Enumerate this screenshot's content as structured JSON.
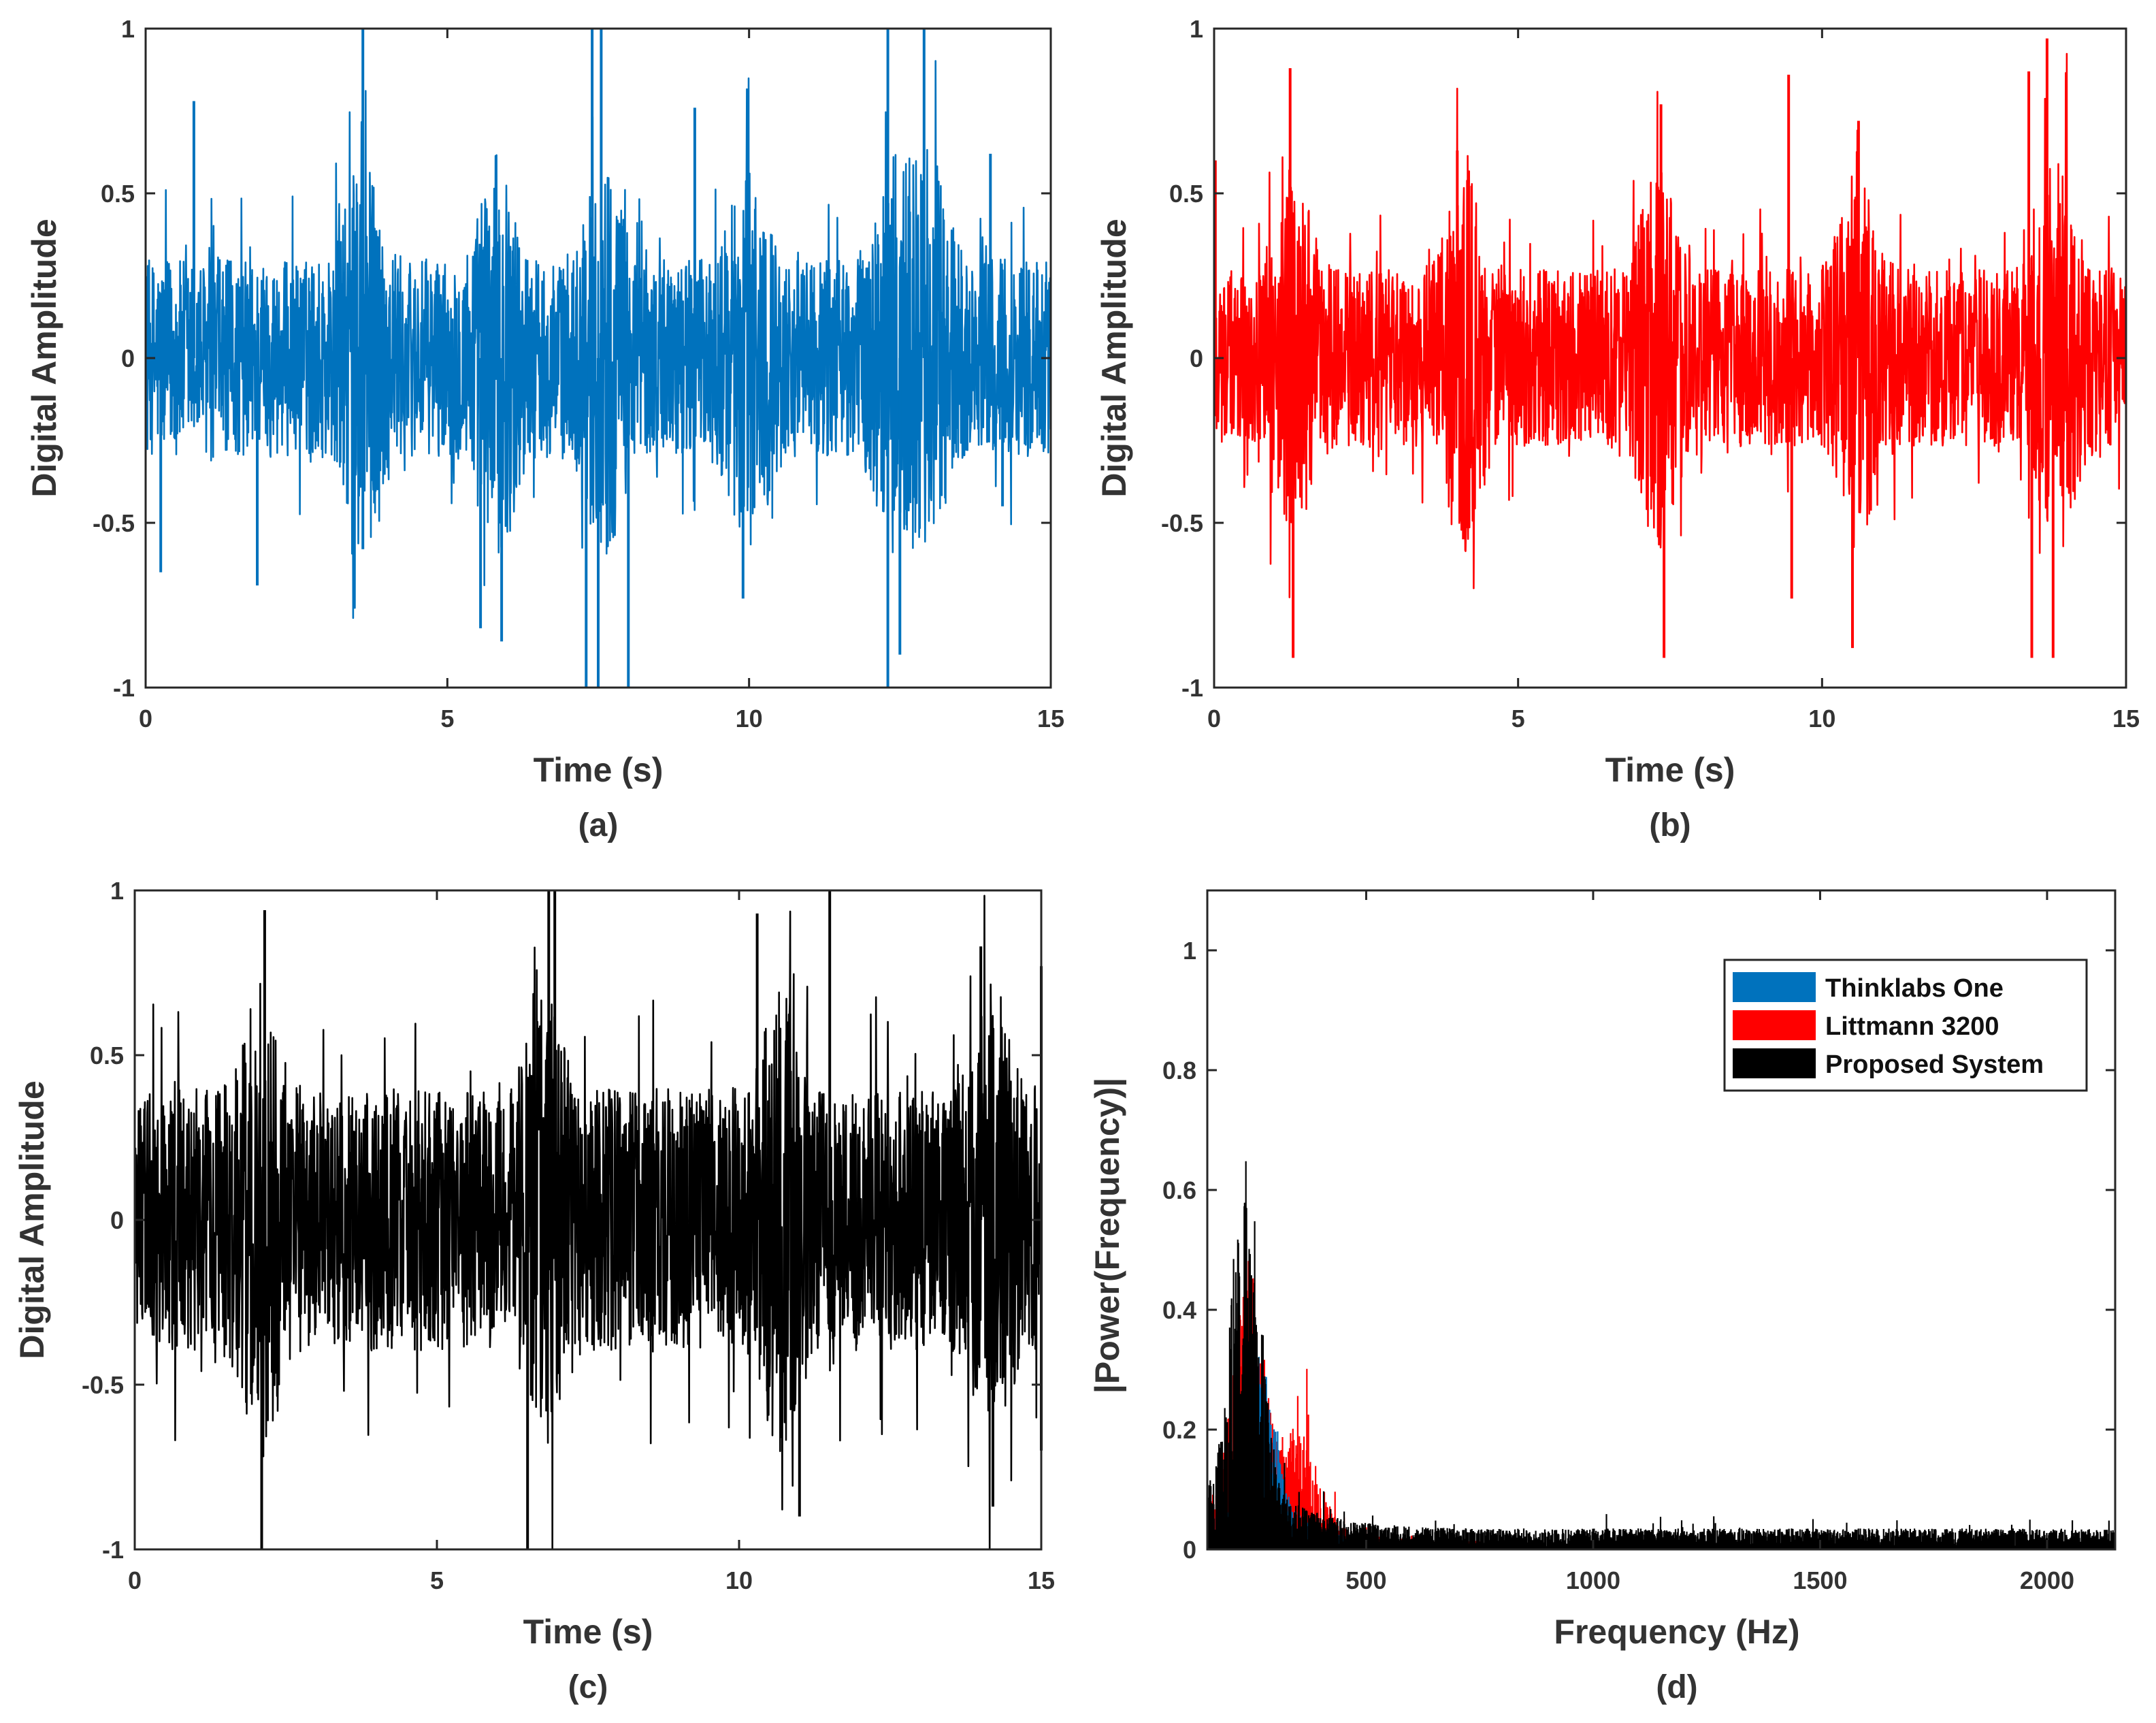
{
  "chart_data": [
    {
      "type": "line",
      "panel": "(a)",
      "caption": "(a)",
      "xlabel": "Time (s)",
      "ylabel": "Digital Amplitude",
      "xlim": [
        0,
        15
      ],
      "ylim": [
        -1,
        1
      ],
      "xticks": [
        "0",
        "5",
        "10",
        "15"
      ],
      "yticks": [
        "-1",
        "-0.5",
        "0",
        "0.5",
        "1"
      ],
      "grid": false,
      "series": [
        {
          "name": "Thinklabs One",
          "color": "#0072BD",
          "base_amplitude": 0.3,
          "envelope_centers_s": [
            3.6,
            5.8,
            7.6,
            10.0,
            12.4,
            13.0
          ],
          "peaks": [
            {
              "t": 0.8,
              "v": 0.78
            },
            {
              "t": 0.25,
              "v": -0.65
            },
            {
              "t": 1.85,
              "v": -0.69
            },
            {
              "t": 3.6,
              "v": 1.0
            },
            {
              "t": 3.6,
              "v": -0.58
            },
            {
              "t": 5.55,
              "v": -0.82
            },
            {
              "t": 5.9,
              "v": -0.86
            },
            {
              "t": 7.4,
              "v": 1.0
            },
            {
              "t": 7.55,
              "v": 1.0
            },
            {
              "t": 7.3,
              "v": -1.0
            },
            {
              "t": 7.5,
              "v": -1.0
            },
            {
              "t": 8.0,
              "v": -1.0
            },
            {
              "t": 9.1,
              "v": 0.76
            },
            {
              "t": 9.9,
              "v": -0.73
            },
            {
              "t": 12.3,
              "v": 1.0
            },
            {
              "t": 12.3,
              "v": -1.0
            },
            {
              "t": 12.9,
              "v": 1.0
            },
            {
              "t": 12.5,
              "v": -0.9
            },
            {
              "t": 14.0,
              "v": 0.62
            },
            {
              "t": 14.2,
              "v": -0.45
            }
          ]
        }
      ]
    },
    {
      "type": "line",
      "panel": "(b)",
      "caption": "(b)",
      "xlabel": "Time (s)",
      "ylabel": "Digital Amplitude",
      "xlim": [
        0,
        15
      ],
      "ylim": [
        -1,
        1
      ],
      "xticks": [
        "0",
        "5",
        "10",
        "15"
      ],
      "yticks": [
        "-1",
        "-0.5",
        "0",
        "0.5",
        "1"
      ],
      "grid": false,
      "series": [
        {
          "name": "Littmann 3200",
          "color": "#FF0000",
          "base_amplitude": 0.27,
          "envelope_centers_s": [
            1.3,
            4.1,
            7.3,
            10.6,
            13.9
          ],
          "peaks": [
            {
              "t": 1.25,
              "v": 0.88
            },
            {
              "t": 1.3,
              "v": -0.91
            },
            {
              "t": 4.0,
              "v": 0.63
            },
            {
              "t": 4.1,
              "v": -0.55
            },
            {
              "t": 7.35,
              "v": 0.77
            },
            {
              "t": 7.4,
              "v": -0.91
            },
            {
              "t": 9.45,
              "v": 0.86
            },
            {
              "t": 9.5,
              "v": -0.73
            },
            {
              "t": 10.6,
              "v": 0.72
            },
            {
              "t": 10.5,
              "v": -0.88
            },
            {
              "t": 13.4,
              "v": 0.87
            },
            {
              "t": 13.45,
              "v": -0.91
            },
            {
              "t": 13.7,
              "v": 0.97
            },
            {
              "t": 13.8,
              "v": -0.91
            },
            {
              "t": 0.02,
              "v": 0.6
            }
          ]
        }
      ]
    },
    {
      "type": "line",
      "panel": "(c)",
      "caption": "(c)",
      "xlabel": "Time (s)",
      "ylabel": "Digital Amplitude",
      "xlim": [
        0,
        15
      ],
      "ylim": [
        -1,
        1
      ],
      "xticks": [
        "0",
        "5",
        "10",
        "15"
      ],
      "yticks": [
        "-1",
        "-0.5",
        "0",
        "0.5",
        "1"
      ],
      "grid": false,
      "series": [
        {
          "name": "Proposed System",
          "color": "#000000",
          "base_amplitude": 0.4,
          "envelope_centers_s": [
            2.1,
            6.8,
            10.7,
            14.2
          ],
          "peaks": [
            {
              "t": 2.15,
              "v": 0.94
            },
            {
              "t": 2.1,
              "v": -1.0
            },
            {
              "t": 6.5,
              "v": -1.0
            },
            {
              "t": 6.85,
              "v": 1.0
            },
            {
              "t": 6.95,
              "v": 1.0
            },
            {
              "t": 10.3,
              "v": 0.93
            },
            {
              "t": 11.5,
              "v": 1.0
            },
            {
              "t": 11.0,
              "v": -0.9
            },
            {
              "t": 14.0,
              "v": 0.83
            },
            {
              "t": 14.2,
              "v": -0.87
            },
            {
              "t": 15.0,
              "v": 0.77
            },
            {
              "t": 15.0,
              "v": -0.7
            }
          ]
        }
      ]
    },
    {
      "type": "line",
      "panel": "(d)",
      "caption": "(d)",
      "xlabel": "Frequency (Hz)",
      "ylabel": "|Power(Frequency)|",
      "xlim": [
        150,
        2150
      ],
      "ylim": [
        0,
        1.1
      ],
      "xticks": [
        "500",
        "1000",
        "1500",
        "2000"
      ],
      "yticks": [
        "0",
        "0.2",
        "0.4",
        "0.6",
        "0.8",
        "1"
      ],
      "grid": false,
      "legend": {
        "position": "top-right",
        "entries": [
          "Thinklabs One",
          "Littmann 3200",
          "Proposed System"
        ]
      },
      "series": [
        {
          "name": "Thinklabs One",
          "color": "#0072BD",
          "peak_hz": 270,
          "peak_value": 0.27,
          "tail_level": 0.01,
          "tail_end_hz": 650
        },
        {
          "name": "Littmann 3200",
          "color": "#FF0000",
          "peak_hz": 240,
          "peak_value": 0.42,
          "tail_level": 0.015,
          "tail_end_hz": 800,
          "secondary_peak_hz": 350,
          "secondary_peak_value": 0.21
        },
        {
          "name": "Proposed System",
          "color": "#000000",
          "peak_hz": 235,
          "peak_value": 0.57,
          "tail_level": 0.035,
          "tail_end_hz": 2150
        }
      ]
    }
  ]
}
